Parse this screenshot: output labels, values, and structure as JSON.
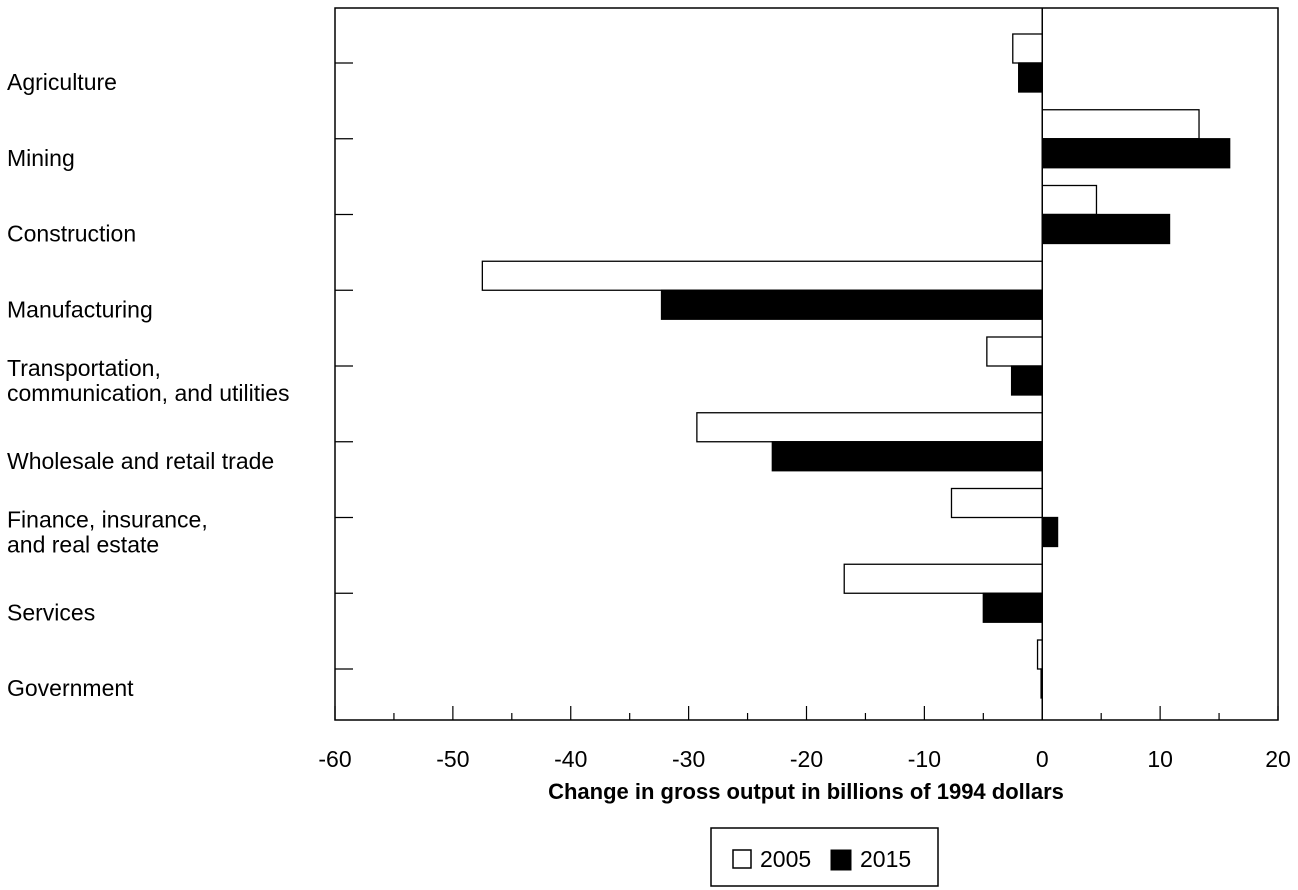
{
  "chart_data": {
    "type": "bar",
    "orientation": "horizontal",
    "categories": [
      [
        "Agriculture"
      ],
      [
        "Mining"
      ],
      [
        "Construction"
      ],
      [
        "Manufacturing"
      ],
      [
        "Transportation,",
        "communication, and utilities"
      ],
      [
        "Wholesale and retail trade"
      ],
      [
        "Finance, insurance,",
        "and real estate"
      ],
      [
        "Services"
      ],
      [
        "Government"
      ]
    ],
    "series": [
      {
        "name": "2005",
        "color": "#ffffff",
        "stroke": "#000000",
        "values": [
          -2.5,
          13.3,
          4.6,
          -47.5,
          -4.7,
          -29.3,
          -7.7,
          -16.8,
          -0.4
        ]
      },
      {
        "name": "2015",
        "color": "#000000",
        "stroke": "#000000",
        "values": [
          -2.0,
          15.9,
          10.8,
          -32.3,
          -2.6,
          -22.9,
          1.3,
          -5.0,
          -0.1
        ]
      }
    ],
    "xlim": [
      -60,
      20
    ],
    "x_ticks": [
      -60,
      -50,
      -40,
      -30,
      -20,
      -10,
      0,
      10,
      20
    ],
    "x_tick_labels": [
      "-60",
      "-50",
      "-40",
      "-30",
      "-20",
      "-10",
      "0",
      "10",
      "20"
    ],
    "xlabel": "Change in gross output in billions of 1994 dollars",
    "ylabel": "",
    "title": "",
    "grid": false,
    "legend_position": "bottom-center"
  }
}
